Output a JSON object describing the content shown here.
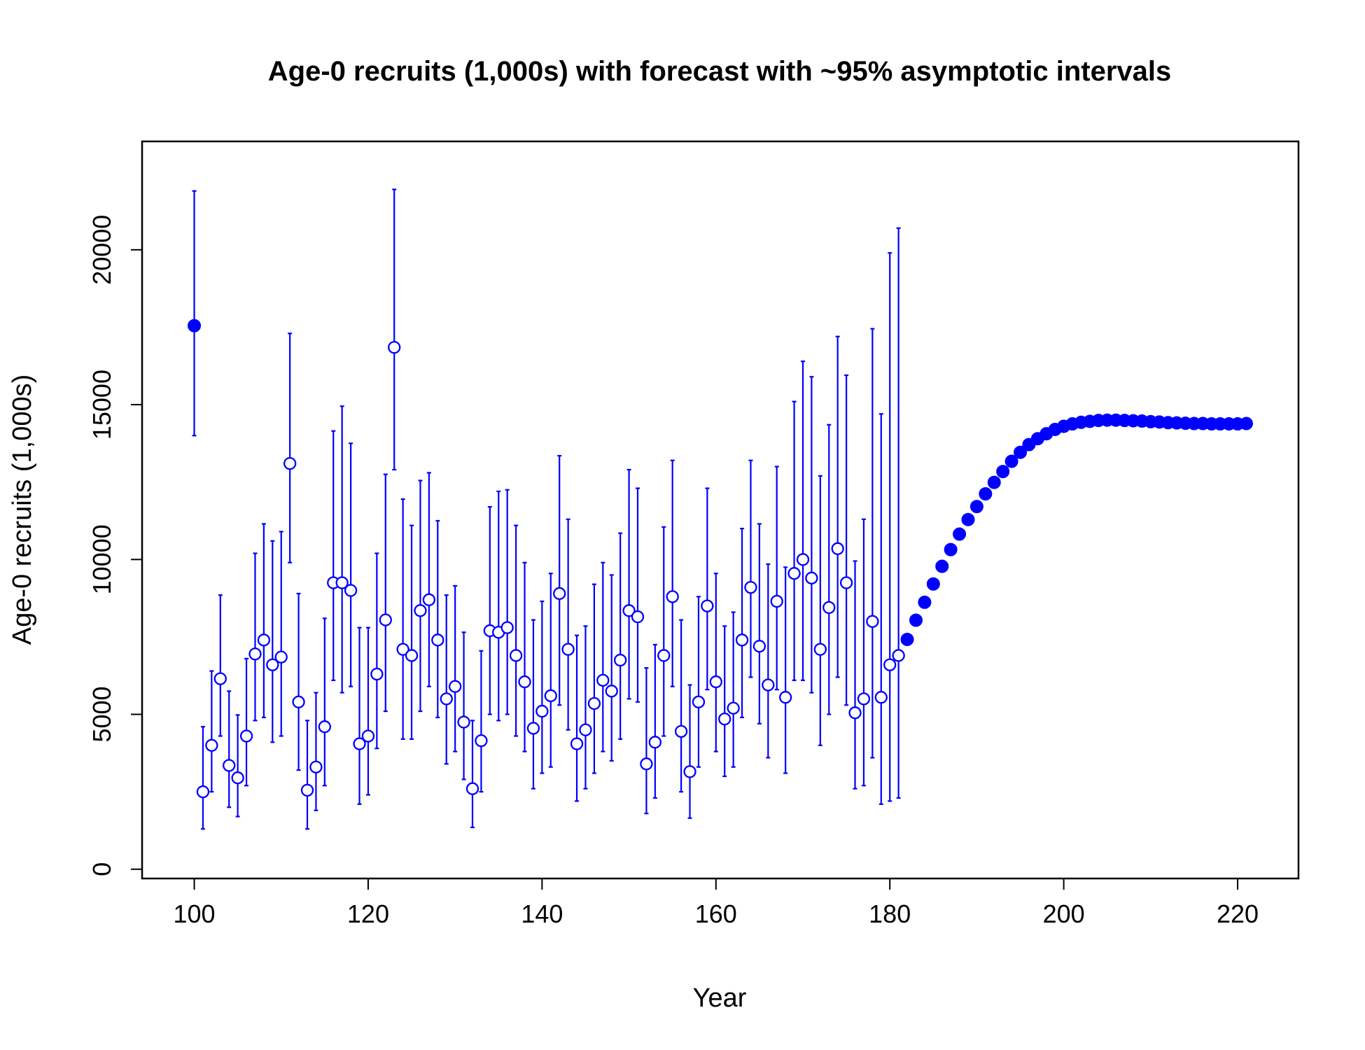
{
  "chart_data": {
    "type": "scatter",
    "title": "Age-0 recruits (1,000s) with forecast with ~95% asymptotic intervals",
    "xlabel": "Year",
    "ylabel": "Age-0 recruits (1,000s)",
    "xlim": [
      94,
      227
    ],
    "ylim": [
      -300,
      23500
    ],
    "x_ticks": [
      100,
      120,
      140,
      160,
      180,
      200,
      220
    ],
    "y_ticks": [
      0,
      5000,
      10000,
      15000,
      20000
    ],
    "grid": false,
    "color": "#0000ff",
    "series": [
      {
        "marker": "filled-circle",
        "x": [
          100
        ],
        "values": [
          17550
        ],
        "lower": [
          14000
        ],
        "upper": [
          21900
        ]
      },
      {
        "marker": "open-circle",
        "x": [
          101,
          102,
          103,
          104,
          105,
          106,
          107,
          108,
          109,
          110,
          111,
          112,
          113,
          114,
          115,
          116,
          117,
          118,
          119,
          120,
          121,
          122,
          123,
          124,
          125,
          126,
          127,
          128,
          129,
          130,
          131,
          132,
          133,
          134,
          135,
          136,
          137,
          138,
          139,
          140,
          141,
          142,
          143,
          144,
          145,
          146,
          147,
          148,
          149,
          150,
          151,
          152,
          153,
          154,
          155,
          156,
          157,
          158,
          159,
          160,
          161,
          162,
          163,
          164,
          165,
          166,
          167,
          168,
          169,
          170,
          171,
          172,
          173,
          174,
          175,
          176,
          177,
          178,
          179,
          180,
          181
        ],
        "values": [
          2500,
          4000,
          6150,
          3350,
          2950,
          4300,
          6950,
          7400,
          6600,
          6850,
          13100,
          5400,
          2550,
          3300,
          4600,
          9250,
          9250,
          9000,
          4050,
          4300,
          6300,
          8050,
          16850,
          7100,
          6900,
          8350,
          8700,
          7400,
          5500,
          5900,
          4750,
          2600,
          4150,
          7700,
          7650,
          7800,
          6900,
          6050,
          4550,
          5100,
          5600,
          8900,
          7100,
          4050,
          4500,
          5350,
          6100,
          5750,
          6750,
          8350,
          8150,
          3400,
          4100,
          6900,
          8800,
          4450,
          3150,
          5400,
          8500,
          6050,
          4850,
          5200,
          7400,
          9100,
          7200,
          5950,
          8650,
          5550,
          9550,
          10000,
          9400,
          7100,
          8450,
          10350,
          9250,
          5050,
          5500,
          8000,
          5550,
          6600,
          6900
        ],
        "lower": [
          1300,
          2500,
          4300,
          2000,
          1700,
          2700,
          4800,
          4900,
          4100,
          4300,
          9900,
          3200,
          1300,
          1900,
          2700,
          6100,
          5700,
          5900,
          2100,
          2400,
          3900,
          5100,
          12900,
          4200,
          4200,
          5100,
          5900,
          4900,
          3400,
          3800,
          2900,
          1350,
          2500,
          5000,
          4800,
          5000,
          4300,
          3800,
          2600,
          3100,
          3300,
          5300,
          4500,
          2200,
          2600,
          3100,
          3800,
          3500,
          4200,
          5500,
          5400,
          1800,
          2300,
          4300,
          5900,
          2500,
          1650,
          3300,
          5800,
          3800,
          3000,
          3300,
          4900,
          6200,
          4700,
          3600,
          5800,
          3100,
          6100,
          6100,
          5700,
          4000,
          5000,
          6200,
          5300,
          2600,
          2700,
          3600,
          2100,
          2200,
          2300
        ],
        "upper": [
          4600,
          6400,
          8850,
          5750,
          4980,
          6800,
          10200,
          11150,
          10600,
          10900,
          17300,
          8900,
          4800,
          5700,
          8100,
          14150,
          14950,
          13750,
          7800,
          7800,
          10200,
          12750,
          21950,
          11950,
          11100,
          12550,
          12800,
          11250,
          8850,
          9150,
          7650,
          4800,
          7050,
          11700,
          12200,
          12250,
          11100,
          9900,
          8050,
          8650,
          9550,
          13350,
          11300,
          7550,
          7850,
          9200,
          9900,
          9500,
          10850,
          12900,
          12300,
          6500,
          7250,
          11050,
          13200,
          8050,
          5950,
          8800,
          12300,
          9550,
          7850,
          8300,
          11000,
          13200,
          11150,
          9850,
          13000,
          9750,
          15100,
          16400,
          15900,
          12700,
          14350,
          17200,
          15950,
          9950,
          11300,
          17450,
          14700,
          19900,
          20700
        ]
      },
      {
        "name": "forecast",
        "marker": "filled-circle",
        "x": [
          182,
          183,
          184,
          185,
          186,
          187,
          188,
          189,
          190,
          191,
          192,
          193,
          194,
          195,
          196,
          197,
          198,
          199,
          200,
          201,
          202,
          203,
          204,
          205,
          206,
          207,
          208,
          209,
          210,
          211,
          212,
          213,
          214,
          215,
          216,
          217,
          218,
          219,
          220,
          221
        ],
        "values": [
          7420,
          8040,
          8620,
          9210,
          9780,
          10320,
          10820,
          11290,
          11710,
          12120,
          12490,
          12840,
          13170,
          13460,
          13710,
          13900,
          14060,
          14200,
          14300,
          14380,
          14430,
          14460,
          14490,
          14500,
          14500,
          14490,
          14480,
          14470,
          14450,
          14440,
          14420,
          14410,
          14400,
          14390,
          14390,
          14380,
          14380,
          14380,
          14380,
          14390
        ]
      }
    ]
  }
}
